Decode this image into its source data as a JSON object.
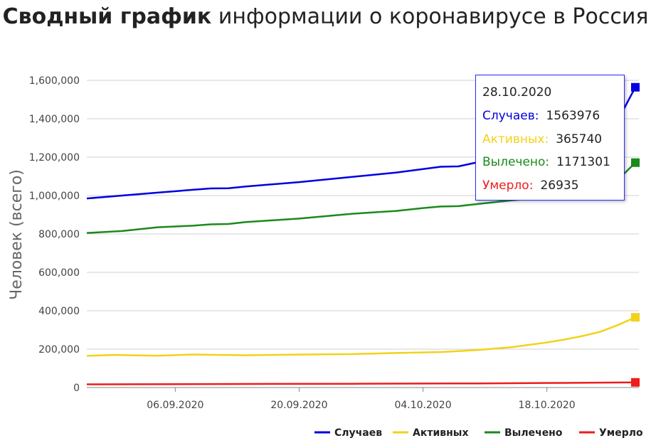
{
  "title": {
    "bold": "Сводный график",
    "rest": "информации о коронавирусе в Россия"
  },
  "colors": {
    "cases": "#0000e0",
    "active": "#f2d21a",
    "recovered": "#1a8a1a",
    "deaths": "#ee1c1c",
    "grid": "#d0d0d0"
  },
  "tooltip": {
    "date": "28.10.2020",
    "items": [
      {
        "label": "Случаев:",
        "value": "1563976",
        "color": "#0000e0"
      },
      {
        "label": "Активных:",
        "value": "365740",
        "color": "#f2d21a"
      },
      {
        "label": "Вылечено:",
        "value": "1171301",
        "color": "#1a8a1a"
      },
      {
        "label": "Умерло:",
        "value": "26935",
        "color": "#ee1c1c"
      }
    ]
  },
  "chart_data": {
    "type": "line",
    "title": "Сводный график информации о коронавирусе в Россия",
    "ylabel": "Человек (всего)",
    "xlabel": "",
    "ylim": [
      0,
      1600000
    ],
    "yticks": [
      0,
      200000,
      400000,
      600000,
      800000,
      1000000,
      1200000,
      1400000,
      1600000
    ],
    "ytick_labels": [
      "0",
      "200,000",
      "400,000",
      "600,000",
      "800,000",
      "1,000,000",
      "1,200,000",
      "1,400,000",
      "1,600,000"
    ],
    "xrange": [
      "2020-08-27",
      "2020-10-28"
    ],
    "xticks": [
      {
        "date": "2020-09-06",
        "label": "06.09.2020"
      },
      {
        "date": "2020-09-20",
        "label": "20.09.2020"
      },
      {
        "date": "2020-10-04",
        "label": "04.10.2020"
      },
      {
        "date": "2020-10-18",
        "label": "18.10.2020"
      }
    ],
    "grid": true,
    "legend_position": "bottom-right",
    "series": [
      {
        "name": "Случаев",
        "color": "#0000e0",
        "points": [
          [
            "2020-08-27",
            985000
          ],
          [
            "2020-08-31",
            1000000
          ],
          [
            "2020-09-04",
            1015000
          ],
          [
            "2020-09-08",
            1030000
          ],
          [
            "2020-09-10",
            1037000
          ],
          [
            "2020-09-12",
            1038000
          ],
          [
            "2020-09-14",
            1047000
          ],
          [
            "2020-09-20",
            1070000
          ],
          [
            "2020-09-26",
            1097000
          ],
          [
            "2020-10-01",
            1120000
          ],
          [
            "2020-10-04",
            1138000
          ],
          [
            "2020-10-06",
            1150000
          ],
          [
            "2020-10-08",
            1152000
          ],
          [
            "2020-10-10",
            1172000
          ],
          [
            "2020-10-14",
            1200000
          ],
          [
            "2020-10-18",
            1230000
          ],
          [
            "2020-10-22",
            1280000
          ],
          [
            "2020-10-26",
            1390000
          ],
          [
            "2020-10-28",
            1563976
          ]
        ]
      },
      {
        "name": "Активных",
        "color": "#f2d21a",
        "points": [
          [
            "2020-08-27",
            165000
          ],
          [
            "2020-08-30",
            170000
          ],
          [
            "2020-09-04",
            166000
          ],
          [
            "2020-09-08",
            172000
          ],
          [
            "2020-09-14",
            168000
          ],
          [
            "2020-09-20",
            172000
          ],
          [
            "2020-09-26",
            174000
          ],
          [
            "2020-10-01",
            180000
          ],
          [
            "2020-10-06",
            185000
          ],
          [
            "2020-10-10",
            195000
          ],
          [
            "2020-10-14",
            210000
          ],
          [
            "2020-10-18",
            235000
          ],
          [
            "2020-10-20",
            250000
          ],
          [
            "2020-10-22",
            268000
          ],
          [
            "2020-10-24",
            290000
          ],
          [
            "2020-10-26",
            325000
          ],
          [
            "2020-10-28",
            365740
          ]
        ]
      },
      {
        "name": "Вылечено",
        "color": "#1a8a1a",
        "points": [
          [
            "2020-08-27",
            805000
          ],
          [
            "2020-08-31",
            815000
          ],
          [
            "2020-09-04",
            835000
          ],
          [
            "2020-09-08",
            843000
          ],
          [
            "2020-09-10",
            850000
          ],
          [
            "2020-09-12",
            852000
          ],
          [
            "2020-09-14",
            862000
          ],
          [
            "2020-09-20",
            880000
          ],
          [
            "2020-09-26",
            905000
          ],
          [
            "2020-10-01",
            920000
          ],
          [
            "2020-10-04",
            935000
          ],
          [
            "2020-10-06",
            943000
          ],
          [
            "2020-10-08",
            945000
          ],
          [
            "2020-10-10",
            955000
          ],
          [
            "2020-10-14",
            975000
          ],
          [
            "2020-10-18",
            990000
          ],
          [
            "2020-10-22",
            1010000
          ],
          [
            "2020-10-26",
            1080000
          ],
          [
            "2020-10-28",
            1171301
          ]
        ]
      },
      {
        "name": "Умерло",
        "color": "#ee1c1c",
        "points": [
          [
            "2020-08-27",
            16500
          ],
          [
            "2020-09-10",
            18000
          ],
          [
            "2020-09-26",
            19500
          ],
          [
            "2020-10-10",
            21500
          ],
          [
            "2020-10-20",
            24000
          ],
          [
            "2020-10-28",
            26935
          ]
        ]
      }
    ]
  }
}
